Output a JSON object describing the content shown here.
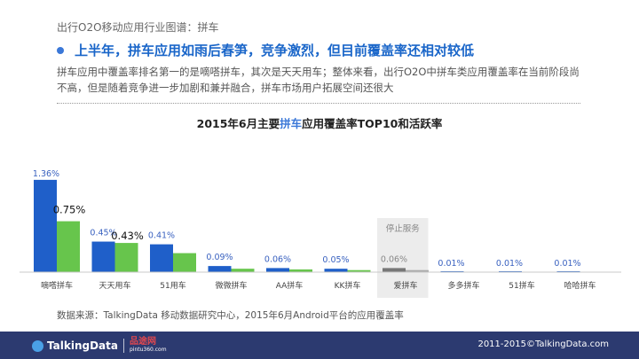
{
  "header": {
    "breadcrumb": "出行O2O移动应用行业图谱：拼车",
    "headline": "上半年，拼车应用如雨后春笋，竞争激烈，但目前覆盖率还相对较低",
    "body": "拼车应用中覆盖率排名第一的是嘀嗒拼车，其次是天天用车；整体来看，出行O2O中拼车类应用覆盖率在当前阶段尚不高，但是随着竞争进一步加剧和兼并融合，拼车市场用户拓展空间还很大"
  },
  "chart_title": {
    "prefix": "2015年6月主要",
    "highlight": "拼车",
    "suffix": "应用覆盖率TOP10和活跃率"
  },
  "chart_data": {
    "type": "bar",
    "categories": [
      "嘀嗒拼车",
      "天天用车",
      "51用车",
      "微微拼车",
      "AA拼车",
      "KK拼车",
      "爱拼车",
      "多多拼车",
      "51拼车",
      "哈哈拼车"
    ],
    "series": [
      {
        "values": [
          1.36,
          0.45,
          0.41,
          0.09,
          0.06,
          0.05,
          0.06,
          0.01,
          0.01,
          0.01
        ],
        "labels": [
          "1.36%",
          "0.45%",
          "0.41%",
          "0.09%",
          "0.06%",
          "0.05%",
          "0.06%",
          "0.01%",
          "0.01%",
          "0.01%"
        ]
      },
      {
        "values": [
          0.75,
          0.43,
          0.28,
          0.05,
          0.04,
          0.03,
          0.03,
          0.0,
          0.0,
          0.0
        ],
        "labels": [
          "0.75%",
          "0.43%",
          "",
          "",
          "",
          "",
          "",
          "",
          "",
          ""
        ]
      }
    ],
    "ylim": [
      0,
      1.45
    ],
    "grid": false,
    "legend": "none",
    "stopped_label": "停止服务",
    "stopped_index": 6,
    "colors": {
      "coverage": "#1f5fc9",
      "active": "#67c54c",
      "stopped_bar": "#777777",
      "stopped_bg": "#ececec",
      "value_label": "#3a62c0",
      "stopped_text": "#888888"
    }
  },
  "source": "数据来源：TalkingData 移动数据研究中心，2015年6月Android平台的应用覆盖率",
  "footer": {
    "logo": "TalkingData",
    "partner_name": "品途网",
    "partner_url": "pintu360.com",
    "copyright": "2011-2015©TalkingData.com"
  }
}
